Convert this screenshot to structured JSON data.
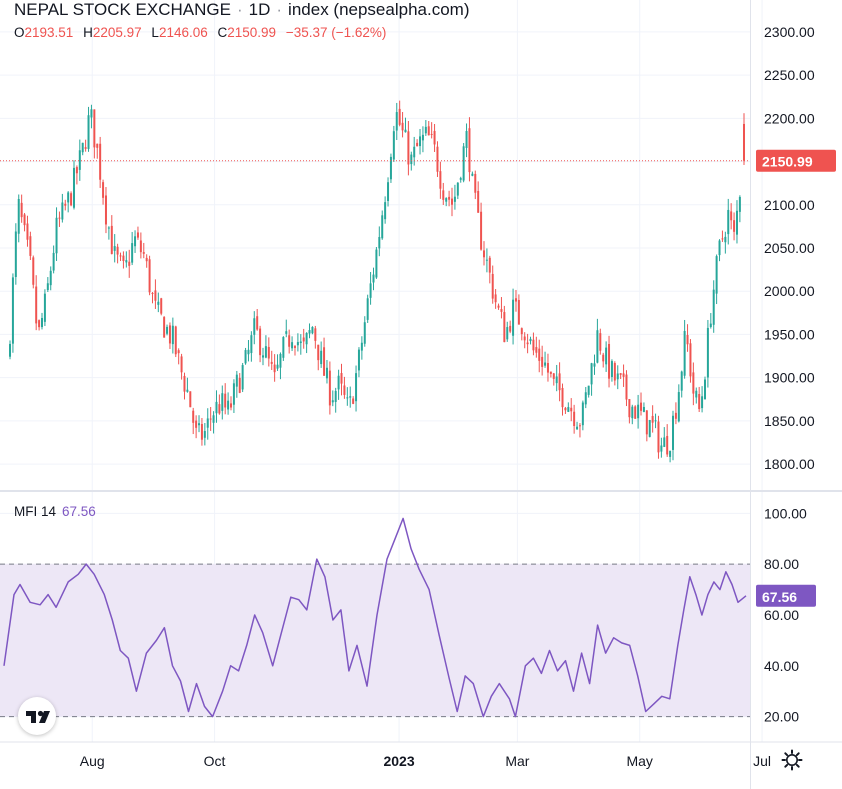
{
  "header": {
    "title": "NEPAL STOCK EXCHANGE",
    "interval": "1D",
    "source": "index (nepsealpha.com)",
    "ohlc": [
      {
        "key": "O",
        "value": "2193.51"
      },
      {
        "key": "H",
        "value": "2205.97"
      },
      {
        "key": "L",
        "value": "2146.06"
      },
      {
        "key": "C",
        "value": "2150.99"
      }
    ],
    "change": "−35.37 (−1.62%)"
  },
  "mfi_legend": {
    "name": "MFI 14",
    "value": "67.56"
  },
  "colors": {
    "up": "#26a69a",
    "down": "#ef5350",
    "mfi_line": "#7e57c2",
    "mfi_band": "#ede7f6",
    "grid": "#f0f3fa",
    "axis_text": "#131722"
  },
  "icons": {
    "logo": "tradingview-logo-icon",
    "settings": "gear-icon"
  },
  "chart_data": [
    {
      "type": "candlestick",
      "title": "NEPAL STOCK EXCHANGE · 1D · index (nepsealpha.com)",
      "ylim": [
        1770,
        2330
      ],
      "y_ticks": [
        "2300.00",
        "2250.00",
        "2200.00",
        "2150.00",
        "2100.00",
        "2050.00",
        "2000.00",
        "1950.00",
        "1900.00",
        "1850.00",
        "1800.00"
      ],
      "last_price": "2150.99",
      "x_ticks": [
        {
          "label": "Aug",
          "date": "2022-08-01"
        },
        {
          "label": "Oct",
          "date": "2022-10-01"
        },
        {
          "label": "2023",
          "date": "2023-01-01"
        },
        {
          "label": "Mar",
          "date": "2023-03-01"
        },
        {
          "label": "May",
          "date": "2023-05-01"
        },
        {
          "label": "Jul",
          "date": "2023-07-01"
        }
      ],
      "xrange": [
        "2022-06-18",
        "2023-06-23"
      ],
      "close_path": [
        [
          "2022-06-20",
          1920
        ],
        [
          "2022-06-25",
          2100
        ],
        [
          "2022-07-01",
          2030
        ],
        [
          "2022-07-05",
          1945
        ],
        [
          "2022-07-09",
          1990
        ],
        [
          "2022-07-14",
          2070
        ],
        [
          "2022-07-21",
          2110
        ],
        [
          "2022-07-27",
          2160
        ],
        [
          "2022-07-31",
          2205
        ],
        [
          "2022-08-04",
          2155
        ],
        [
          "2022-08-08",
          2090
        ],
        [
          "2022-08-12",
          2040
        ],
        [
          "2022-08-17",
          2020
        ],
        [
          "2022-08-22",
          2060
        ],
        [
          "2022-08-27",
          2040
        ],
        [
          "2022-09-01",
          1980
        ],
        [
          "2022-09-06",
          1960
        ],
        [
          "2022-09-10",
          1945
        ],
        [
          "2022-09-14",
          1910
        ],
        [
          "2022-09-18",
          1880
        ],
        [
          "2022-09-22",
          1830
        ],
        [
          "2022-09-26",
          1835
        ],
        [
          "2022-09-30",
          1860
        ],
        [
          "2022-10-04",
          1870
        ],
        [
          "2022-10-08",
          1860
        ],
        [
          "2022-10-12",
          1890
        ],
        [
          "2022-10-17",
          1920
        ],
        [
          "2022-10-21",
          1955
        ],
        [
          "2022-10-26",
          1930
        ],
        [
          "2022-10-31",
          1895
        ],
        [
          "2022-11-04",
          1930
        ],
        [
          "2022-11-09",
          1955
        ],
        [
          "2022-11-14",
          1930
        ],
        [
          "2022-11-19",
          1960
        ],
        [
          "2022-11-24",
          1910
        ],
        [
          "2022-11-28",
          1880
        ],
        [
          "2022-12-02",
          1890
        ],
        [
          "2022-12-07",
          1860
        ],
        [
          "2022-12-12",
          1920
        ],
        [
          "2022-12-16",
          1980
        ],
        [
          "2022-12-21",
          2050
        ],
        [
          "2022-12-26",
          2130
        ],
        [
          "2022-12-30",
          2210
        ],
        [
          "2023-01-03",
          2180
        ],
        [
          "2023-01-07",
          2150
        ],
        [
          "2023-01-11",
          2170
        ],
        [
          "2023-01-15",
          2180
        ],
        [
          "2023-01-19",
          2160
        ],
        [
          "2023-01-23",
          2120
        ],
        [
          "2023-01-28",
          2100
        ],
        [
          "2023-02-01",
          2150
        ],
        [
          "2023-02-04",
          2180
        ],
        [
          "2023-02-07",
          2110
        ],
        [
          "2023-02-11",
          2060
        ],
        [
          "2023-02-15",
          2020
        ],
        [
          "2023-02-19",
          1980
        ],
        [
          "2023-02-23",
          1950
        ],
        [
          "2023-02-27",
          1980
        ],
        [
          "2023-03-04",
          1960
        ],
        [
          "2023-03-09",
          1930
        ],
        [
          "2023-03-14",
          1920
        ],
        [
          "2023-03-19",
          1890
        ],
        [
          "2023-03-24",
          1880
        ],
        [
          "2023-03-29",
          1860
        ],
        [
          "2023-04-02",
          1850
        ],
        [
          "2023-04-06",
          1900
        ],
        [
          "2023-04-10",
          1950
        ],
        [
          "2023-04-14",
          1920
        ],
        [
          "2023-04-18",
          1900
        ],
        [
          "2023-04-22",
          1890
        ],
        [
          "2023-04-26",
          1870
        ],
        [
          "2023-04-30",
          1860
        ],
        [
          "2023-05-04",
          1850
        ],
        [
          "2023-05-08",
          1840
        ],
        [
          "2023-05-12",
          1820
        ],
        [
          "2023-05-16",
          1830
        ],
        [
          "2023-05-20",
          1880
        ],
        [
          "2023-05-24",
          1950
        ],
        [
          "2023-05-28",
          1880
        ],
        [
          "2023-05-31",
          1860
        ],
        [
          "2023-06-03",
          1920
        ],
        [
          "2023-06-06",
          1990
        ],
        [
          "2023-06-10",
          2050
        ],
        [
          "2023-06-14",
          2090
        ],
        [
          "2023-06-17",
          2060
        ],
        [
          "2023-06-20",
          2120
        ],
        [
          "2023-06-22",
          2151
        ]
      ],
      "last_candle": {
        "open": 2193.51,
        "high": 2205.97,
        "low": 2146.06,
        "close": 2150.99
      }
    },
    {
      "type": "line",
      "title": "MFI 14",
      "ylim": [
        10,
        108
      ],
      "y_ticks": [
        "100.00",
        "80.00",
        "60.00",
        "40.00",
        "20.00"
      ],
      "band": [
        20,
        80
      ],
      "last_value": "67.56",
      "points": [
        [
          "2022-06-18",
          40
        ],
        [
          "2022-06-23",
          68
        ],
        [
          "2022-06-26",
          72
        ],
        [
          "2022-07-01",
          65
        ],
        [
          "2022-07-06",
          64
        ],
        [
          "2022-07-10",
          68
        ],
        [
          "2022-07-14",
          63
        ],
        [
          "2022-07-20",
          73
        ],
        [
          "2022-07-25",
          76
        ],
        [
          "2022-07-29",
          80
        ],
        [
          "2022-08-02",
          76
        ],
        [
          "2022-08-07",
          68
        ],
        [
          "2022-08-11",
          58
        ],
        [
          "2022-08-15",
          46
        ],
        [
          "2022-08-19",
          43
        ],
        [
          "2022-08-23",
          30
        ],
        [
          "2022-08-28",
          45
        ],
        [
          "2022-09-02",
          50
        ],
        [
          "2022-09-06",
          55
        ],
        [
          "2022-09-10",
          40
        ],
        [
          "2022-09-14",
          34
        ],
        [
          "2022-09-18",
          22
        ],
        [
          "2022-09-22",
          33
        ],
        [
          "2022-09-26",
          24
        ],
        [
          "2022-09-30",
          20
        ],
        [
          "2022-10-05",
          30
        ],
        [
          "2022-10-09",
          40
        ],
        [
          "2022-10-13",
          38
        ],
        [
          "2022-10-17",
          48
        ],
        [
          "2022-10-21",
          60
        ],
        [
          "2022-10-25",
          53
        ],
        [
          "2022-10-30",
          40
        ],
        [
          "2022-11-03",
          52
        ],
        [
          "2022-11-08",
          67
        ],
        [
          "2022-11-12",
          66
        ],
        [
          "2022-11-16",
          62
        ],
        [
          "2022-11-21",
          82
        ],
        [
          "2022-11-25",
          75
        ],
        [
          "2022-11-29",
          58
        ],
        [
          "2022-12-03",
          62
        ],
        [
          "2022-12-07",
          38
        ],
        [
          "2022-12-11",
          48
        ],
        [
          "2022-12-16",
          32
        ],
        [
          "2022-12-21",
          60
        ],
        [
          "2022-12-26",
          82
        ],
        [
          "2022-12-30",
          90
        ],
        [
          "2023-01-03",
          98
        ],
        [
          "2023-01-07",
          86
        ],
        [
          "2023-01-11",
          78
        ],
        [
          "2023-01-16",
          70
        ],
        [
          "2023-01-21",
          52
        ],
        [
          "2023-01-26",
          35
        ],
        [
          "2023-01-30",
          22
        ],
        [
          "2023-02-03",
          36
        ],
        [
          "2023-02-07",
          33
        ],
        [
          "2023-02-12",
          20
        ],
        [
          "2023-02-16",
          28
        ],
        [
          "2023-02-20",
          33
        ],
        [
          "2023-02-25",
          27
        ],
        [
          "2023-02-28",
          20
        ],
        [
          "2023-03-05",
          40
        ],
        [
          "2023-03-09",
          43
        ],
        [
          "2023-03-13",
          37
        ],
        [
          "2023-03-17",
          46
        ],
        [
          "2023-03-21",
          38
        ],
        [
          "2023-03-25",
          42
        ],
        [
          "2023-03-29",
          30
        ],
        [
          "2023-04-02",
          45
        ],
        [
          "2023-04-06",
          33
        ],
        [
          "2023-04-10",
          56
        ],
        [
          "2023-04-14",
          45
        ],
        [
          "2023-04-18",
          51
        ],
        [
          "2023-04-22",
          49
        ],
        [
          "2023-04-26",
          48
        ],
        [
          "2023-04-30",
          36
        ],
        [
          "2023-05-04",
          22
        ],
        [
          "2023-05-08",
          25
        ],
        [
          "2023-05-12",
          28
        ],
        [
          "2023-05-16",
          27
        ],
        [
          "2023-05-20",
          48
        ],
        [
          "2023-05-23",
          62
        ],
        [
          "2023-05-26",
          75
        ],
        [
          "2023-05-29",
          68
        ],
        [
          "2023-06-01",
          60
        ],
        [
          "2023-06-04",
          68
        ],
        [
          "2023-06-07",
          73
        ],
        [
          "2023-06-10",
          70
        ],
        [
          "2023-06-13",
          77
        ],
        [
          "2023-06-16",
          72
        ],
        [
          "2023-06-19",
          65
        ],
        [
          "2023-06-23",
          67.56
        ]
      ]
    }
  ]
}
